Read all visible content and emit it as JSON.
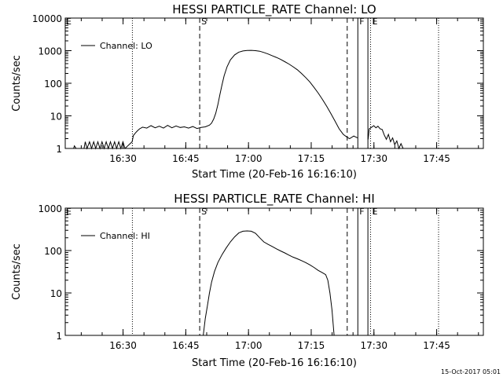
{
  "footer": {
    "timestamp": "15-Oct-2017 05:01"
  },
  "chart_data": [
    {
      "type": "line",
      "title": "HESSI PARTICLE_RATE Channel: LO",
      "xlabel": "Start Time (20-Feb-16 16:16:10)",
      "ylabel": "Counts/sec",
      "y_scale": "log",
      "ylim": [
        1,
        10000
      ],
      "y_ticks": [
        1,
        10,
        100,
        1000,
        10000
      ],
      "y_tick_labels": [
        "1",
        "10",
        "100",
        "1000",
        "10000"
      ],
      "x_unit": "minutes after 16:16:10",
      "xlim": [
        0,
        100
      ],
      "x_ticks": [
        13.83,
        28.83,
        43.83,
        58.83,
        73.83,
        88.83
      ],
      "x_tick_labels": [
        "16:30",
        "16:45",
        "17:00",
        "17:15",
        "17:30",
        "17:45"
      ],
      "legend": {
        "label": "Channel: LO",
        "position": "top-left"
      },
      "grid": false,
      "markers": [
        {
          "time": 32.16,
          "style": "dashed",
          "label": "S"
        },
        {
          "time": 67.44,
          "style": "dashed",
          "label": ""
        },
        {
          "time": 69.98,
          "style": "solid",
          "label": "F"
        },
        {
          "time": 72.39,
          "style": "solid",
          "label": ""
        },
        {
          "time": 73.03,
          "style": "dotted",
          "label": "E"
        },
        {
          "time": 16.06,
          "style": "dotted",
          "label": ""
        },
        {
          "time": 89.29,
          "style": "dotted",
          "label": ""
        }
      ],
      "series": [
        {
          "name": "Channel: LO",
          "segments": [
            [
              [
                2.0,
                1
              ],
              [
                2.2,
                1.2
              ],
              [
                2.6,
                1
              ],
              [
                4.5,
                1
              ],
              [
                4.8,
                1.6
              ],
              [
                5.2,
                1
              ],
              [
                5.8,
                1.6
              ],
              [
                6.3,
                1
              ],
              [
                6.8,
                1.6
              ],
              [
                7.3,
                1
              ],
              [
                7.8,
                1.6
              ],
              [
                8.3,
                1
              ],
              [
                8.8,
                1.6
              ],
              [
                9.3,
                1
              ],
              [
                9.8,
                1.6
              ],
              [
                10.3,
                1
              ],
              [
                10.8,
                1.6
              ],
              [
                11.3,
                1
              ],
              [
                11.8,
                1.6
              ],
              [
                12.3,
                1
              ],
              [
                12.8,
                1.6
              ],
              [
                13.3,
                1
              ],
              [
                13.8,
                1.6
              ],
              [
                14.3,
                1
              ],
              [
                16.0,
                1.6
              ],
              [
                16.3,
                2.5
              ],
              [
                16.8,
                3.0
              ],
              [
                17.3,
                3.5
              ],
              [
                17.8,
                4.0
              ],
              [
                18.5,
                4.5
              ],
              [
                19.5,
                4.2
              ],
              [
                20.5,
                5.0
              ],
              [
                21.5,
                4.3
              ],
              [
                22.5,
                4.8
              ],
              [
                23.5,
                4.2
              ],
              [
                24.5,
                5.1
              ],
              [
                25.5,
                4.3
              ],
              [
                26.5,
                4.9
              ],
              [
                27.5,
                4.4
              ],
              [
                28.5,
                4.6
              ],
              [
                29.5,
                4.2
              ],
              [
                30.5,
                4.7
              ],
              [
                31.5,
                4.1
              ],
              [
                32.5,
                4.4
              ],
              [
                33.5,
                4.6
              ],
              [
                34.5,
                5.2
              ],
              [
                35.0,
                6
              ],
              [
                35.5,
                8
              ],
              [
                36.0,
                12
              ],
              [
                36.5,
                22
              ],
              [
                37.0,
                45
              ],
              [
                37.5,
                90
              ],
              [
                38.0,
                170
              ],
              [
                38.7,
                320
              ],
              [
                39.5,
                520
              ],
              [
                40.5,
                740
              ],
              [
                41.5,
                900
              ],
              [
                42.5,
                980
              ],
              [
                43.5,
                1010
              ],
              [
                44.5,
                1020
              ],
              [
                45.5,
                1000
              ],
              [
                46.5,
                960
              ],
              [
                47.5,
                880
              ],
              [
                48.5,
                790
              ],
              [
                49.5,
                700
              ],
              [
                50.5,
                620
              ],
              [
                51.5,
                540
              ],
              [
                52.5,
                460
              ],
              [
                53.5,
                390
              ],
              [
                54.5,
                320
              ],
              [
                55.5,
                260
              ],
              [
                56.5,
                200
              ],
              [
                57.5,
                150
              ],
              [
                58.5,
                110
              ],
              [
                59.5,
                75
              ],
              [
                60.5,
                50
              ],
              [
                61.5,
                32
              ],
              [
                62.5,
                20
              ],
              [
                63.5,
                12
              ],
              [
                64.5,
                7
              ],
              [
                65.5,
                4
              ],
              [
                66.5,
                2.7
              ],
              [
                67.44,
                2.2
              ],
              [
                68.0,
                2.0
              ],
              [
                69.0,
                2.4
              ],
              [
                69.9,
                2.1
              ]
            ],
            [
              [
                72.45,
                1.9
              ],
              [
                72.7,
                4.0
              ],
              [
                73.2,
                4.4
              ],
              [
                73.8,
                5.0
              ],
              [
                74.3,
                4.3
              ],
              [
                74.8,
                4.8
              ],
              [
                75.3,
                4.0
              ],
              [
                75.8,
                3.8
              ],
              [
                76.3,
                2.6
              ],
              [
                76.8,
                1.9
              ],
              [
                77.3,
                2.7
              ],
              [
                77.8,
                1.6
              ],
              [
                78.3,
                2.1
              ],
              [
                78.8,
                1.3
              ],
              [
                79.3,
                1.7
              ],
              [
                79.8,
                1.0
              ],
              [
                80.3,
                1.4
              ],
              [
                80.8,
                1.0
              ]
            ]
          ]
        }
      ]
    },
    {
      "type": "line",
      "title": "HESSI PARTICLE_RATE Channel: HI",
      "xlabel": "Start Time (20-Feb-16 16:16:10)",
      "ylabel": "Counts/sec",
      "y_scale": "log",
      "ylim": [
        1,
        1000
      ],
      "y_ticks": [
        1,
        10,
        100,
        1000
      ],
      "y_tick_labels": [
        "1",
        "10",
        "100",
        "1000"
      ],
      "x_unit": "minutes after 16:16:10",
      "xlim": [
        0,
        100
      ],
      "x_ticks": [
        13.83,
        28.83,
        43.83,
        58.83,
        73.83,
        88.83
      ],
      "x_tick_labels": [
        "16:30",
        "16:45",
        "17:00",
        "17:15",
        "17:30",
        "17:45"
      ],
      "legend": {
        "label": "Channel: HI",
        "position": "top-left"
      },
      "grid": false,
      "markers": [
        {
          "time": 32.16,
          "style": "dashed",
          "label": "S"
        },
        {
          "time": 67.44,
          "style": "dashed",
          "label": ""
        },
        {
          "time": 69.98,
          "style": "solid",
          "label": "F"
        },
        {
          "time": 72.39,
          "style": "solid",
          "label": ""
        },
        {
          "time": 73.03,
          "style": "dotted",
          "label": "E"
        },
        {
          "time": 16.06,
          "style": "dotted",
          "label": ""
        },
        {
          "time": 89.29,
          "style": "dotted",
          "label": ""
        }
      ],
      "series": [
        {
          "name": "Channel: HI",
          "segments": [
            [
              [
                33.0,
                1
              ],
              [
                33.5,
                2.5
              ],
              [
                34.0,
                5
              ],
              [
                34.5,
                10
              ],
              [
                35.0,
                18
              ],
              [
                35.7,
                32
              ],
              [
                36.5,
                52
              ],
              [
                37.5,
                80
              ],
              [
                38.5,
                115
              ],
              [
                39.5,
                160
              ],
              [
                40.5,
                210
              ],
              [
                41.5,
                260
              ],
              [
                42.5,
                285
              ],
              [
                43.5,
                290
              ],
              [
                44.5,
                285
              ],
              [
                45.5,
                255
              ],
              [
                46.5,
                200
              ],
              [
                47.5,
                160
              ],
              [
                48.5,
                140
              ],
              [
                49.5,
                125
              ],
              [
                50.5,
                110
              ],
              [
                51.5,
                98
              ],
              [
                52.5,
                88
              ],
              [
                53.5,
                78
              ],
              [
                54.5,
                70
              ],
              [
                55.5,
                64
              ],
              [
                56.5,
                58
              ],
              [
                57.5,
                52
              ],
              [
                58.5,
                46
              ],
              [
                59.5,
                40
              ],
              [
                60.5,
                34
              ],
              [
                61.5,
                30
              ],
              [
                62.3,
                27
              ],
              [
                62.8,
                20
              ],
              [
                63.3,
                10
              ],
              [
                63.8,
                4
              ],
              [
                64.3,
                1
              ]
            ]
          ]
        }
      ]
    }
  ]
}
